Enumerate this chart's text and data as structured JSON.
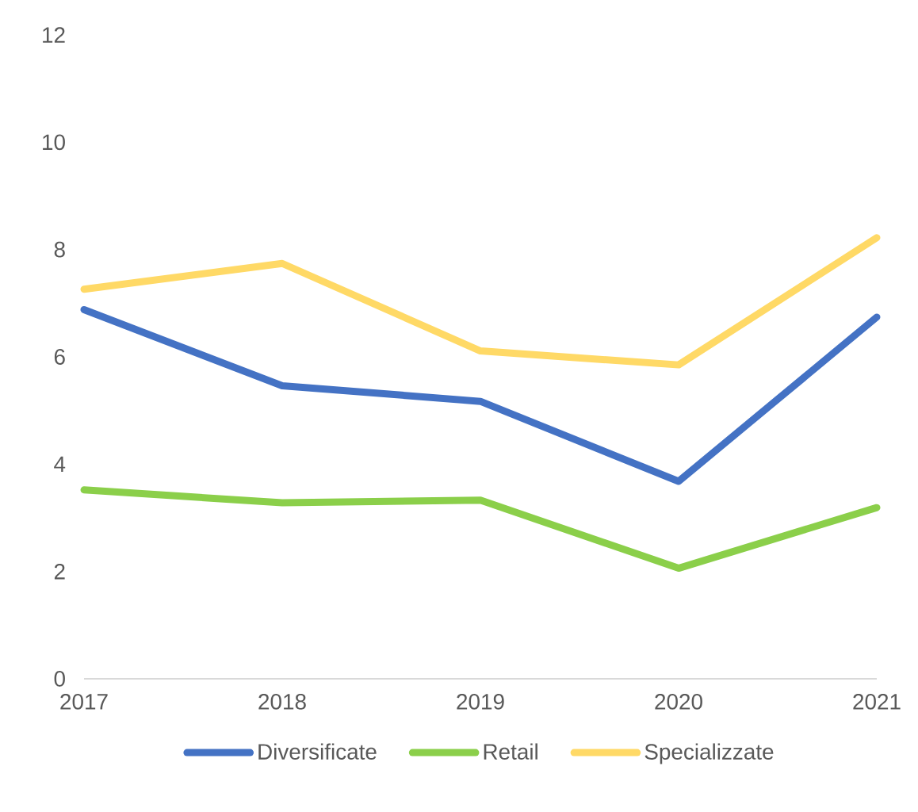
{
  "chart_data": {
    "type": "line",
    "categories": [
      "2017",
      "2018",
      "2019",
      "2020",
      "2021"
    ],
    "series": [
      {
        "name": "Diversificate",
        "color": "#4472c4",
        "values": [
          6.88,
          5.46,
          5.17,
          3.68,
          6.74
        ]
      },
      {
        "name": "Retail",
        "color": "#8bcf4a",
        "values": [
          3.52,
          3.28,
          3.33,
          2.06,
          3.19
        ]
      },
      {
        "name": "Specializzate",
        "color": "#ffd966",
        "values": [
          7.26,
          7.74,
          6.11,
          5.85,
          8.22
        ]
      }
    ],
    "ylim": [
      0,
      12
    ],
    "yticks": [
      0,
      2,
      4,
      6,
      8,
      10,
      12
    ],
    "legend": "bottom",
    "grid": false,
    "marker": "none",
    "line_style": "solid"
  }
}
